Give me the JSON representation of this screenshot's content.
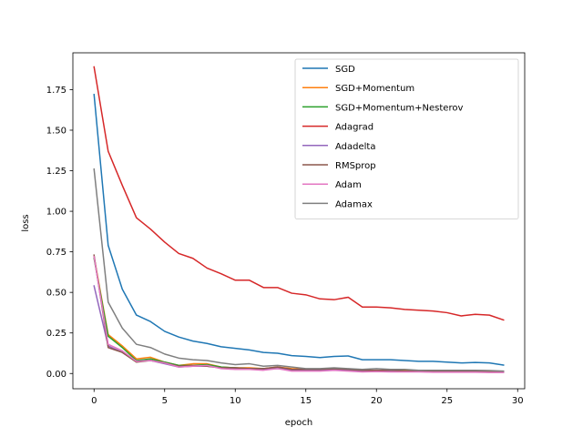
{
  "chart_data": {
    "type": "line",
    "title": "",
    "xlabel": "epoch",
    "ylabel": "loss",
    "xlim": [
      -1.5,
      30.5
    ],
    "ylim": [
      -0.094,
      1.977
    ],
    "xticks": [
      0,
      5,
      10,
      15,
      20,
      25,
      30
    ],
    "yticks": [
      0.0,
      0.25,
      0.5,
      0.75,
      1.0,
      1.25,
      1.5,
      1.75
    ],
    "ytick_labels": [
      "0.00",
      "0.25",
      "0.50",
      "0.75",
      "1.00",
      "1.25",
      "1.50",
      "1.75"
    ],
    "grid": false,
    "legend": "top-right",
    "x": [
      0,
      1,
      2,
      3,
      4,
      5,
      6,
      7,
      8,
      9,
      10,
      11,
      12,
      13,
      14,
      15,
      16,
      17,
      18,
      19,
      20,
      21,
      22,
      23,
      24,
      25,
      26,
      27,
      28,
      29
    ],
    "series": [
      {
        "name": "SGD",
        "color": "#1f77b4",
        "values": [
          1.72,
          0.79,
          0.52,
          0.36,
          0.32,
          0.26,
          0.225,
          0.2,
          0.185,
          0.165,
          0.155,
          0.145,
          0.13,
          0.125,
          0.11,
          0.105,
          0.098,
          0.105,
          0.108,
          0.085,
          0.085,
          0.085,
          0.08,
          0.075,
          0.075,
          0.07,
          0.065,
          0.068,
          0.065,
          0.052
        ]
      },
      {
        "name": "SGD+Momentum",
        "color": "#ff7f0e",
        "values": [
          0.72,
          0.24,
          0.17,
          0.09,
          0.1,
          0.07,
          0.05,
          0.06,
          0.06,
          0.04,
          0.035,
          0.035,
          0.03,
          0.04,
          0.03,
          0.025,
          0.025,
          0.03,
          0.025,
          0.02,
          0.02,
          0.02,
          0.018,
          0.015,
          0.015,
          0.015,
          0.015,
          0.012,
          0.012,
          0.01
        ]
      },
      {
        "name": "SGD+Momentum+Nesterov",
        "color": "#2ca02c",
        "values": [
          0.71,
          0.23,
          0.16,
          0.08,
          0.09,
          0.07,
          0.05,
          0.05,
          0.055,
          0.04,
          0.035,
          0.03,
          0.03,
          0.035,
          0.025,
          0.025,
          0.02,
          0.025,
          0.02,
          0.02,
          0.018,
          0.018,
          0.015,
          0.015,
          0.012,
          0.012,
          0.012,
          0.01,
          0.01,
          0.01
        ]
      },
      {
        "name": "Adagrad",
        "color": "#d62728",
        "values": [
          1.89,
          1.37,
          1.16,
          0.96,
          0.89,
          0.81,
          0.74,
          0.71,
          0.65,
          0.615,
          0.575,
          0.575,
          0.53,
          0.53,
          0.495,
          0.485,
          0.46,
          0.455,
          0.47,
          0.41,
          0.41,
          0.405,
          0.395,
          0.39,
          0.385,
          0.375,
          0.355,
          0.365,
          0.36,
          0.33
        ]
      },
      {
        "name": "Adadelta",
        "color": "#9467bd",
        "values": [
          0.54,
          0.17,
          0.13,
          0.075,
          0.08,
          0.06,
          0.04,
          0.045,
          0.045,
          0.035,
          0.03,
          0.03,
          0.025,
          0.03,
          0.02,
          0.02,
          0.02,
          0.022,
          0.02,
          0.015,
          0.015,
          0.015,
          0.012,
          0.012,
          0.01,
          0.01,
          0.01,
          0.01,
          0.008,
          0.008
        ]
      },
      {
        "name": "RMSprop",
        "color": "#8c564b",
        "values": [
          0.73,
          0.16,
          0.13,
          0.07,
          0.08,
          0.065,
          0.045,
          0.05,
          0.045,
          0.035,
          0.035,
          0.03,
          0.03,
          0.04,
          0.025,
          0.025,
          0.025,
          0.03,
          0.025,
          0.02,
          0.02,
          0.02,
          0.015,
          0.015,
          0.015,
          0.015,
          0.012,
          0.015,
          0.01,
          0.01
        ]
      },
      {
        "name": "Adam",
        "color": "#e377c2",
        "values": [
          0.72,
          0.18,
          0.14,
          0.075,
          0.08,
          0.065,
          0.04,
          0.045,
          0.05,
          0.03,
          0.025,
          0.025,
          0.02,
          0.03,
          0.015,
          0.015,
          0.015,
          0.02,
          0.015,
          0.01,
          0.012,
          0.01,
          0.01,
          0.01,
          0.008,
          0.008,
          0.008,
          0.008,
          0.006,
          0.006
        ]
      },
      {
        "name": "Adamax",
        "color": "#7f7f7f",
        "values": [
          1.26,
          0.44,
          0.28,
          0.18,
          0.16,
          0.12,
          0.095,
          0.085,
          0.08,
          0.065,
          0.055,
          0.06,
          0.045,
          0.05,
          0.04,
          0.03,
          0.03,
          0.035,
          0.03,
          0.025,
          0.03,
          0.025,
          0.025,
          0.02,
          0.02,
          0.02,
          0.02,
          0.02,
          0.018,
          0.015
        ]
      }
    ]
  }
}
